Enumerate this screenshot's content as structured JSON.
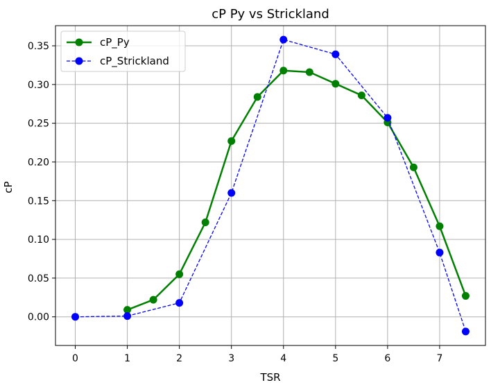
{
  "chart_data": {
    "type": "line",
    "title": "cP Py vs Strickland",
    "xlabel": "TSR",
    "ylabel": "cP",
    "xlim": [
      -0.38,
      7.88
    ],
    "ylim": [
      -0.037,
      0.376
    ],
    "x_ticks": [
      0,
      1,
      2,
      3,
      4,
      5,
      6,
      7
    ],
    "x_tick_labels": [
      "0",
      "1",
      "2",
      "3",
      "4",
      "5",
      "6",
      "7"
    ],
    "y_ticks": [
      0.0,
      0.05,
      0.1,
      0.15,
      0.2,
      0.25,
      0.3,
      0.35
    ],
    "y_tick_labels": [
      "0.00",
      "0.05",
      "0.10",
      "0.15",
      "0.20",
      "0.25",
      "0.30",
      "0.35"
    ],
    "grid": true,
    "legend_position": "top-left",
    "series": [
      {
        "name": "cP_Py",
        "color": "#008000",
        "line_style": "solid",
        "x": [
          1.0,
          1.5,
          2.0,
          2.5,
          3.0,
          3.5,
          4.0,
          4.5,
          5.0,
          5.5,
          6.0,
          6.5,
          7.0,
          7.5
        ],
        "y": [
          0.009,
          0.022,
          0.055,
          0.122,
          0.227,
          0.284,
          0.318,
          0.316,
          0.301,
          0.286,
          0.251,
          0.193,
          0.117,
          0.027
        ]
      },
      {
        "name": "cP_Strickland",
        "color": "#0000ff",
        "line_style": "dashed",
        "x": [
          0,
          1,
          2,
          3,
          4,
          5,
          6,
          7,
          7.5
        ],
        "y": [
          0.0,
          0.001,
          0.018,
          0.16,
          0.358,
          0.339,
          0.257,
          0.083,
          -0.019
        ]
      }
    ]
  }
}
